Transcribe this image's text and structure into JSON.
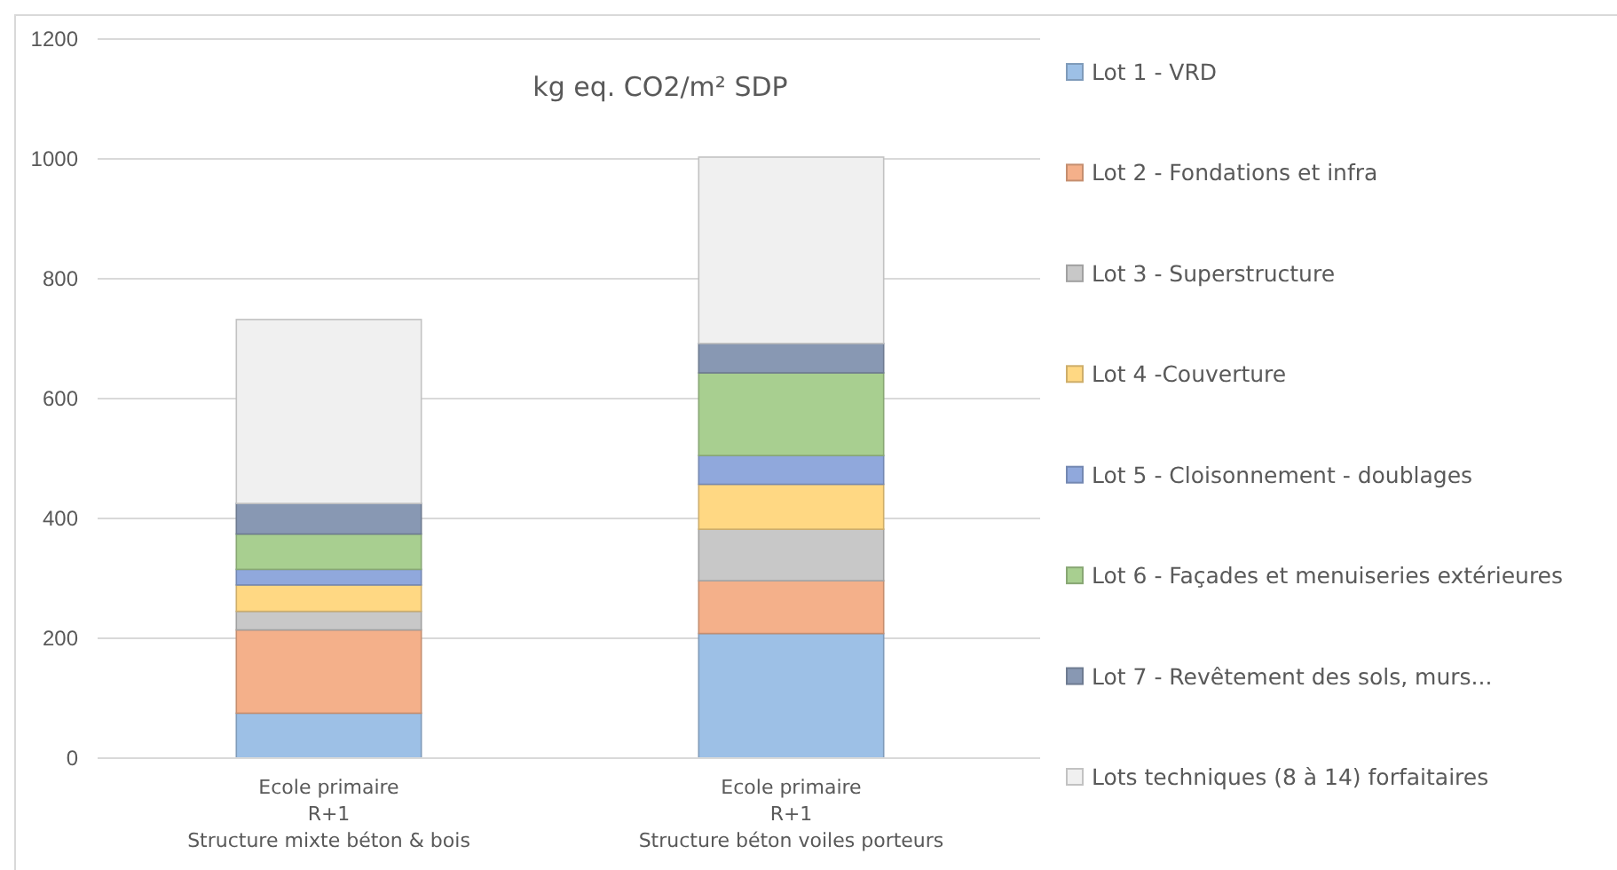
{
  "chart_data": {
    "type": "bar",
    "stacked": true,
    "title": "kg eq. CO2/m² SDP",
    "categories": [
      "Ecole primaire\nR+1\nStructure mixte béton & bois",
      "Ecole primaire\nR+1\nStructure béton voiles porteurs"
    ],
    "series": [
      {
        "name": "Lot 1 - VRD",
        "color": "#9dc0e6",
        "values": [
          75,
          208
        ]
      },
      {
        "name": "Lot 2 - Fondations et infra",
        "color": "#f4b08a",
        "values": [
          139,
          88
        ]
      },
      {
        "name": "Lot 3 - Superstructure",
        "color": "#c8c8c8",
        "values": [
          31,
          86
        ]
      },
      {
        "name": "Lot 4 -Couverture",
        "color": "#ffd883",
        "values": [
          44,
          75
        ]
      },
      {
        "name": "Lot 5 - Cloisonnement - doublages",
        "color": "#90a8dc",
        "values": [
          26,
          48
        ]
      },
      {
        "name": "Lot 6 - Façades et menuiseries extérieures",
        "color": "#a8cf90",
        "values": [
          59,
          138
        ]
      },
      {
        "name": "Lot 7 - Revêtement des sols, murs...",
        "color": "#8898b3",
        "values": [
          51,
          49
        ]
      },
      {
        "name": "Lots techniques (8 à 14) forfaitaires",
        "color": "#f0f0f0",
        "values": [
          307,
          311
        ]
      }
    ],
    "ylim": [
      0,
      1200
    ],
    "yticks": [
      0,
      200,
      400,
      600,
      800,
      1000,
      1200
    ],
    "grid": "y",
    "legend": "right"
  }
}
